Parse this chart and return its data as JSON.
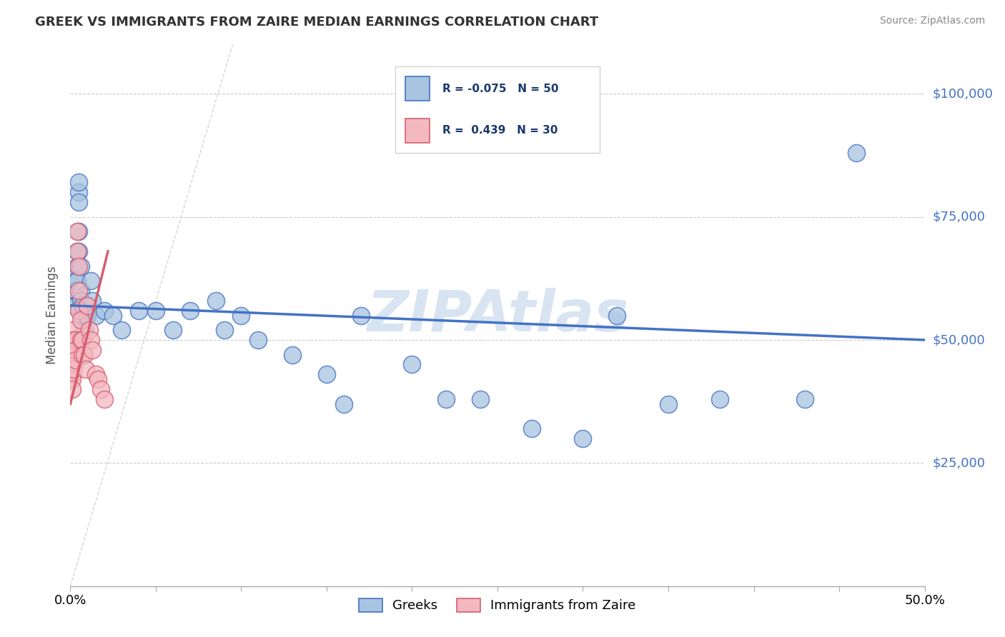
{
  "title": "GREEK VS IMMIGRANTS FROM ZAIRE MEDIAN EARNINGS CORRELATION CHART",
  "source": "Source: ZipAtlas.com",
  "ylabel": "Median Earnings",
  "ytick_labels": [
    "$25,000",
    "$50,000",
    "$75,000",
    "$100,000"
  ],
  "ytick_values": [
    25000,
    50000,
    75000,
    100000
  ],
  "xmin": 0.0,
  "xmax": 0.5,
  "ymin": 0,
  "ymax": 110000,
  "watermark": "ZIPAtlas",
  "blue_color": "#a8c4e0",
  "blue_line_color": "#4472c4",
  "pink_color": "#f4b8c1",
  "pink_line_color": "#d45f6e",
  "background_color": "#ffffff",
  "greek_x": [
    0.002,
    0.003,
    0.003,
    0.003,
    0.004,
    0.004,
    0.004,
    0.005,
    0.005,
    0.005,
    0.005,
    0.005,
    0.006,
    0.006,
    0.006,
    0.007,
    0.007,
    0.008,
    0.008,
    0.009,
    0.01,
    0.01,
    0.012,
    0.013,
    0.015,
    0.02,
    0.025,
    0.03,
    0.04,
    0.05,
    0.06,
    0.07,
    0.085,
    0.09,
    0.1,
    0.11,
    0.13,
    0.15,
    0.16,
    0.17,
    0.2,
    0.22,
    0.24,
    0.27,
    0.3,
    0.32,
    0.35,
    0.38,
    0.43,
    0.46
  ],
  "greek_y": [
    57000,
    62000,
    60000,
    57000,
    68000,
    65000,
    62000,
    80000,
    82000,
    78000,
    72000,
    68000,
    65000,
    60000,
    58000,
    57000,
    54000,
    56000,
    52000,
    55000,
    57000,
    55000,
    62000,
    58000,
    55000,
    56000,
    55000,
    52000,
    56000,
    56000,
    52000,
    56000,
    58000,
    52000,
    55000,
    50000,
    47000,
    43000,
    37000,
    55000,
    45000,
    38000,
    38000,
    32000,
    30000,
    55000,
    37000,
    38000,
    38000,
    88000
  ],
  "zaire_x": [
    0.001,
    0.001,
    0.001,
    0.001,
    0.002,
    0.002,
    0.002,
    0.002,
    0.003,
    0.003,
    0.003,
    0.004,
    0.004,
    0.005,
    0.005,
    0.005,
    0.006,
    0.006,
    0.007,
    0.007,
    0.008,
    0.009,
    0.01,
    0.011,
    0.012,
    0.013,
    0.015,
    0.016,
    0.018,
    0.02
  ],
  "zaire_y": [
    45000,
    43000,
    42000,
    40000,
    52000,
    50000,
    48000,
    44000,
    50000,
    48000,
    46000,
    72000,
    68000,
    65000,
    60000,
    56000,
    54000,
    50000,
    50000,
    47000,
    47000,
    44000,
    57000,
    52000,
    50000,
    48000,
    43000,
    42000,
    40000,
    38000
  ],
  "legend_items": [
    {
      "color": "#a8c4e0",
      "edge": "#4472c4",
      "r": "-0.075",
      "n": "50"
    },
    {
      "color": "#f4b8c1",
      "edge": "#d45f6e",
      "r": "0.439",
      "n": "30"
    }
  ]
}
